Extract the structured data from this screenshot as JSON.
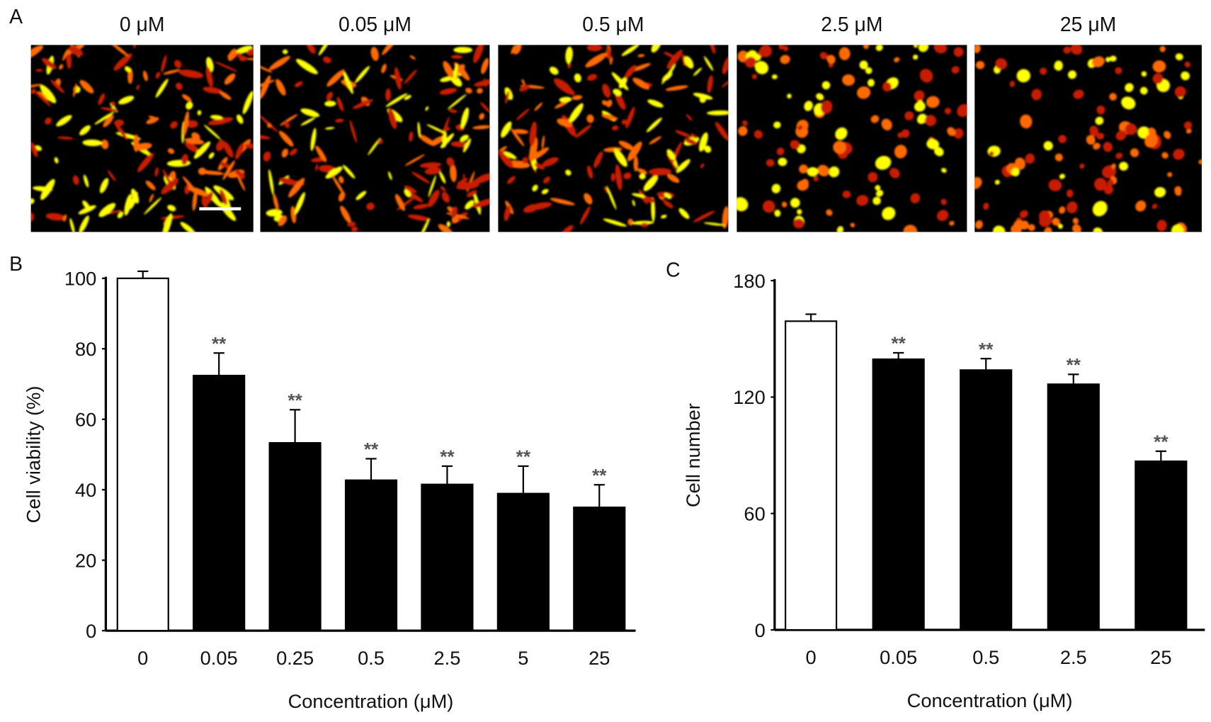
{
  "panel_labels": {
    "a": "A",
    "b": "B",
    "c": "C"
  },
  "micrographs": {
    "titles": [
      "0 μM",
      "0.05 μM",
      "0.5 μM",
      "2.5 μM",
      "25 μM"
    ],
    "colors": {
      "background": "#000000",
      "cell_dim": "#c81e00",
      "cell_mid": "#ff6a00",
      "cell_bright": "#ffff00",
      "scale_bar": "#ffffff"
    }
  },
  "chart_data": [
    {
      "type": "bar",
      "panel": "B",
      "categories": [
        "0",
        "0.05",
        "0.25",
        "0.5",
        "2.5",
        "5",
        "25"
      ],
      "values": [
        100,
        72.4,
        53.3,
        42.7,
        41.5,
        38.9,
        35.0
      ],
      "error_upper": [
        102,
        78.8,
        62.7,
        48.8,
        46.7,
        46.7,
        41.4
      ],
      "significance": [
        "",
        "**",
        "**",
        "**",
        "**",
        "**",
        "**"
      ],
      "bar_fill": [
        "#ffffff",
        "#000000",
        "#000000",
        "#000000",
        "#000000",
        "#000000",
        "#000000"
      ],
      "xlabel": "Concentration (μM)",
      "ylabel": "Cell viability (%)",
      "ylim": [
        0,
        100
      ],
      "yticks": [
        0,
        20,
        40,
        60,
        80,
        100
      ],
      "grid": false
    },
    {
      "type": "bar",
      "panel": "C",
      "categories": [
        "0",
        "0.05",
        "0.5",
        "2.5",
        "25"
      ],
      "values": [
        159.1,
        139.5,
        133.9,
        126.6,
        86.9
      ],
      "error_upper": [
        162.7,
        142.8,
        139.8,
        131.7,
        92.1
      ],
      "significance": [
        "",
        "**",
        "**",
        "**",
        "**"
      ],
      "bar_fill": [
        "#ffffff",
        "#000000",
        "#000000",
        "#000000",
        "#000000"
      ],
      "xlabel": "Concentration (μM)",
      "ylabel": "Cell number",
      "ylim": [
        0,
        180
      ],
      "yticks": [
        0,
        60,
        120,
        180
      ],
      "grid": false
    }
  ]
}
